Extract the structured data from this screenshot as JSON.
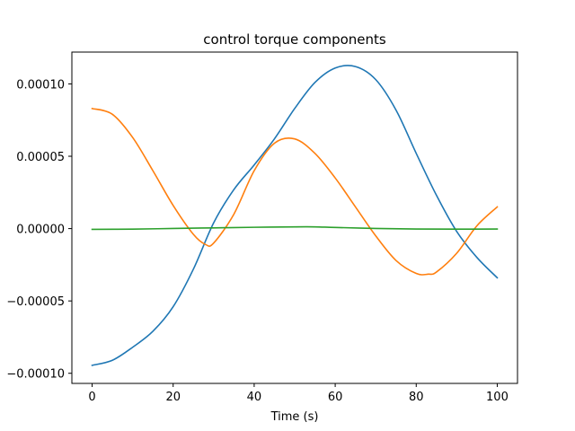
{
  "chart_data": {
    "type": "line",
    "title": "control torque components",
    "xlabel": "Time (s)",
    "ylabel": "",
    "xlim": [
      -5,
      105
    ],
    "ylim": [
      -0.000107,
      0.000122
    ],
    "xticks": [
      0,
      20,
      40,
      60,
      80,
      100
    ],
    "xtick_labels": [
      "0",
      "20",
      "40",
      "60",
      "80",
      "100"
    ],
    "yticks": [
      -0.0001,
      -5e-05,
      0,
      5e-05,
      0.0001
    ],
    "ytick_labels": [
      "−0.00010",
      "−0.00005",
      "0.00000",
      "0.00005",
      "0.00010"
    ],
    "grid": false,
    "legend": false,
    "series": [
      {
        "color": "#1f77b4",
        "x": [
          0,
          5,
          10,
          15,
          20,
          25,
          30,
          35,
          40,
          45,
          50,
          55,
          60,
          65,
          70,
          75,
          80,
          85,
          90,
          95,
          100
        ],
        "y": [
          -9.45e-05,
          -9.1e-05,
          -8.2e-05,
          -7.1e-05,
          -5.4e-05,
          -2.8e-05,
          4e-06,
          2.7e-05,
          4.4e-05,
          6.2e-05,
          8.3e-05,
          0.000101,
          0.000111,
          0.000112,
          0.000103,
          8.2e-05,
          5.2e-05,
          2.3e-05,
          -2e-06,
          -2e-05,
          -3.4e-05
        ]
      },
      {
        "color": "#ff7f0e",
        "x": [
          0,
          5,
          10,
          15,
          20,
          25,
          28,
          30,
          35,
          40,
          45,
          50,
          55,
          60,
          65,
          70,
          75,
          80,
          83,
          85,
          90,
          95,
          100
        ],
        "y": [
          8.3e-05,
          7.9e-05,
          6.3e-05,
          4e-05,
          1.6e-05,
          -4e-06,
          -1.1e-05,
          -1e-05,
          1e-05,
          4e-05,
          5.9e-05,
          6.2e-05,
          5.2e-05,
          3.5e-05,
          1.5e-05,
          -5e-06,
          -2.2e-05,
          -3.1e-05,
          -3.15e-05,
          -3e-05,
          -1.7e-05,
          2e-06,
          1.5e-05
        ]
      },
      {
        "color": "#2ca02c",
        "x": [
          0,
          10,
          20,
          30,
          40,
          50,
          55,
          60,
          70,
          80,
          90,
          100
        ],
        "y": [
          -5e-07,
          -4e-07,
          1e-07,
          5e-07,
          9e-07,
          1.2e-06,
          1.2e-06,
          8e-07,
          1e-07,
          -3e-07,
          -4e-07,
          -3e-07
        ]
      }
    ]
  }
}
